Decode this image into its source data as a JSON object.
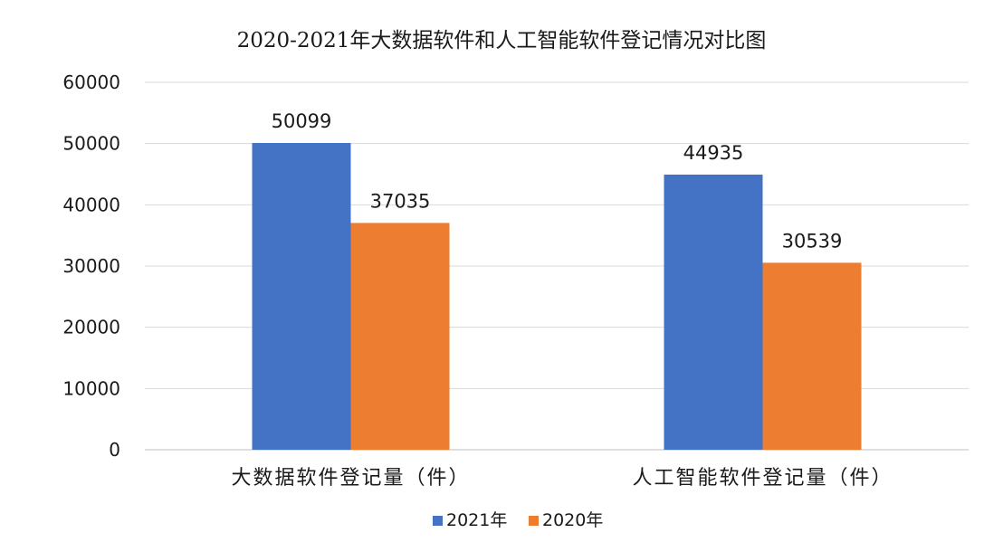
{
  "chart_data": {
    "type": "bar",
    "title": "2020-2021年大数据软件和人工智能软件登记情况对比图",
    "categories": [
      "大数据软件登记量（件）",
      "人工智能软件登记量（件）"
    ],
    "series": [
      {
        "name": "2021年",
        "values": [
          50099,
          44935
        ],
        "color": "#4472C4"
      },
      {
        "name": "2020年",
        "values": [
          37035,
          30539
        ],
        "color": "#ED7D31"
      }
    ],
    "ylim": [
      0,
      60000
    ],
    "yticks": [
      0,
      10000,
      20000,
      30000,
      40000,
      50000,
      60000
    ],
    "xlabel": "",
    "ylabel": "",
    "grid": true,
    "legend_position": "bottom",
    "data_labels": true
  }
}
